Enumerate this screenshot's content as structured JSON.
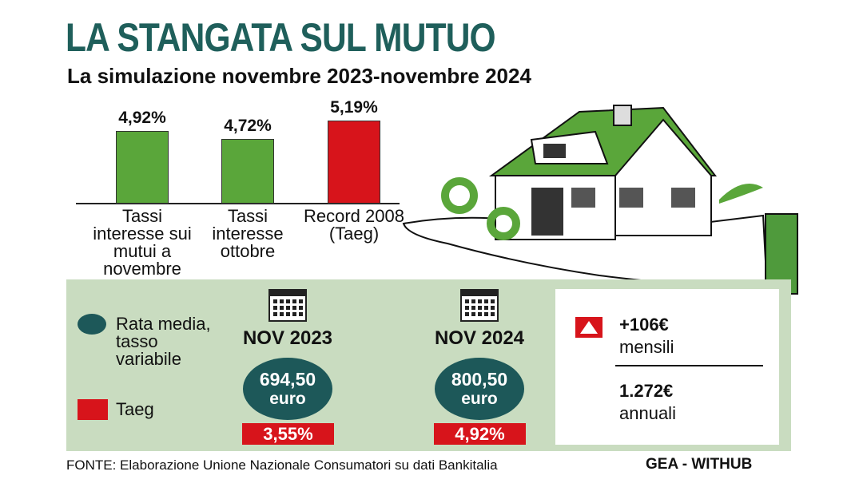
{
  "header": {
    "title": "LA STANGATA SUL MUTUO",
    "subtitle": "La simulazione novembre 2023-novembre 2024"
  },
  "chart_data": {
    "type": "bar",
    "categories": [
      "Tassi interesse sui mutui a novembre",
      "Tassi interesse ottobre",
      "Record 2008 (Taeg)"
    ],
    "values": [
      4.92,
      4.72,
      5.19
    ],
    "value_labels": [
      "4,92%",
      "4,72%",
      "5,19%"
    ],
    "colors": [
      "#5aa63a",
      "#5aa63a",
      "#d7141b"
    ],
    "ylim": [
      3.1,
      5.3
    ]
  },
  "panel": {
    "legend": [
      {
        "label": "Rata media, tasso variabile",
        "color": "#1d5859"
      },
      {
        "label": "Taeg",
        "color": "#d7141b"
      }
    ],
    "columns": [
      {
        "date": "NOV 2023",
        "amount": "694,50",
        "unit": "euro",
        "taeg": "3,55%"
      },
      {
        "date": "NOV 2024",
        "amount": "800,50",
        "unit": "euro",
        "taeg": "4,92%"
      }
    ],
    "difference": {
      "monthly": "+106€",
      "monthly_label": "mensili",
      "yearly": "1.272€",
      "yearly_label": "annuali"
    }
  },
  "source": "FONTE: Elaborazione Unione Nazionale Consumatori su dati Bankitalia",
  "credit": "GEA - WITHUB"
}
